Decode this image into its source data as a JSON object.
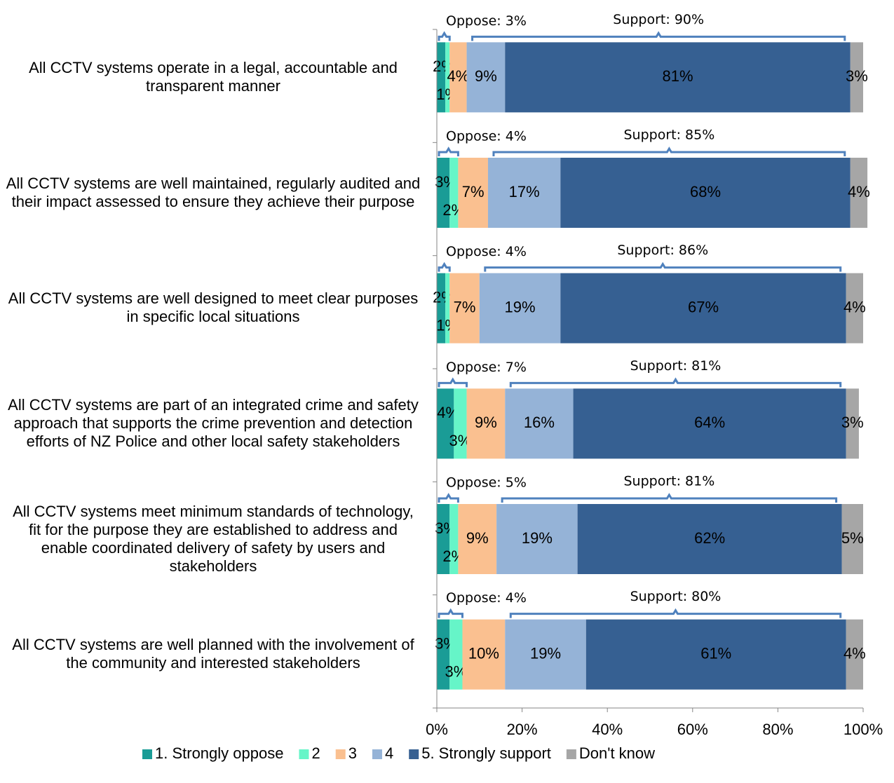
{
  "chart_data": {
    "type": "stacked-bar-horizontal",
    "categories": [
      "All CCTV systems operate in a legal, accountable and transparent manner",
      "All CCTV systems are well maintained, regularly audited and their impact assessed to ensure they achieve their purpose",
      "All CCTV systems are well designed to meet clear purposes in specific local situations",
      "All CCTV systems are part of an integrated crime and safety approach that supports the crime prevention and detection efforts of NZ Police and other local safety stakeholders",
      "All CCTV systems meet minimum standards of technology, fit for the purpose they are established to address and enable coordinated delivery of safety by users and stakeholders",
      "All CCTV systems are well planned with the involvement of the community and interested stakeholders"
    ],
    "series": [
      {
        "name": "1. Strongly oppose",
        "color": "#1a9c96",
        "values": [
          2,
          3,
          2,
          4,
          3,
          3
        ],
        "value_labels": [
          "2%",
          "3%",
          "2%",
          "4%",
          "3%",
          "3%"
        ]
      },
      {
        "name": "2",
        "color": "#66f5c8",
        "values": [
          1,
          2,
          1,
          3,
          2,
          3
        ],
        "value_labels": [
          "1%",
          "2%",
          "1%",
          "3%",
          "2%",
          "3%"
        ]
      },
      {
        "name": "3",
        "color": "#fac090",
        "values": [
          4,
          7,
          7,
          9,
          9,
          10
        ],
        "value_labels": [
          "4%",
          "7%",
          "7%",
          "9%",
          "9%",
          "10%"
        ]
      },
      {
        "name": "4",
        "color": "#95b3d7",
        "values": [
          9,
          17,
          19,
          16,
          19,
          19
        ],
        "value_labels": [
          "9%",
          "17%",
          "19%",
          "16%",
          "19%",
          "19%"
        ]
      },
      {
        "name": "5. Strongly support",
        "color": "#366092",
        "values": [
          81,
          68,
          67,
          64,
          62,
          61
        ],
        "value_labels": [
          "81%",
          "68%",
          "67%",
          "64%",
          "62%",
          "61%"
        ]
      },
      {
        "name": "Don't know",
        "color": "#a6a6a6",
        "values": [
          3,
          4,
          4,
          3,
          5,
          4
        ],
        "value_labels": [
          "3%",
          "4%",
          "4%",
          "3%",
          "5%",
          "4%"
        ]
      }
    ],
    "annotations": [
      {
        "oppose": "Oppose: 3%",
        "support": "Support: 90%"
      },
      {
        "oppose": "Oppose: 4%",
        "support": "Support: 85%"
      },
      {
        "oppose": "Oppose: 4%",
        "support": "Support: 86%"
      },
      {
        "oppose": "Oppose: 7%",
        "support": "Support: 81%"
      },
      {
        "oppose": "Oppose: 5%",
        "support": "Support: 81%"
      },
      {
        "oppose": "Oppose: 4%",
        "support": "Support: 80%"
      }
    ],
    "xlim": [
      0,
      100
    ],
    "xticks": [
      {
        "value": 0,
        "label": "0%"
      },
      {
        "value": 20,
        "label": "20%"
      },
      {
        "value": 40,
        "label": "40%"
      },
      {
        "value": 60,
        "label": "60%"
      },
      {
        "value": 80,
        "label": "80%"
      },
      {
        "value": 100,
        "label": "100%"
      }
    ],
    "legend": "bottom"
  }
}
